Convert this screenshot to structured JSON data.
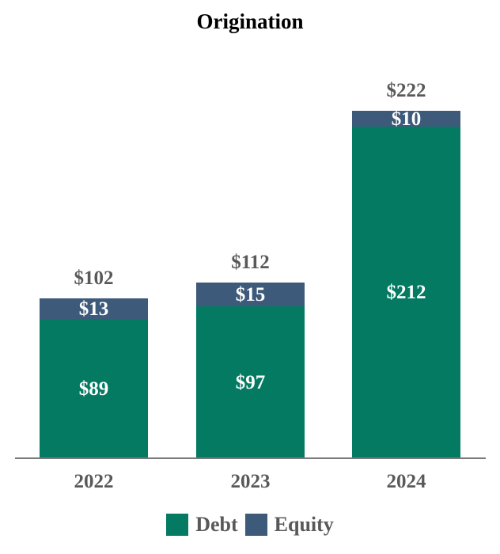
{
  "chart_data": {
    "type": "bar",
    "stacked": true,
    "title": "Origination",
    "categories": [
      "2022",
      "2023",
      "2024"
    ],
    "series": [
      {
        "name": "Debt",
        "color": "#057A62",
        "values": [
          89,
          97,
          212
        ],
        "value_labels": [
          "$89",
          "$97",
          "$212"
        ]
      },
      {
        "name": "Equity",
        "color": "#3D5A7A",
        "values": [
          13,
          15,
          10
        ],
        "value_labels": [
          "$13",
          "$15",
          "$10"
        ]
      }
    ],
    "totals": [
      102,
      112,
      222
    ],
    "total_labels": [
      "$102",
      "$112",
      "$222"
    ],
    "ylim": [
      0,
      222
    ],
    "grid": false,
    "axis_visible": "x-only",
    "legend_position": "bottom",
    "colors": {
      "label_gray": "#595959",
      "axis_line": "#7A7A7A",
      "title": "#000000",
      "segment_label": "#FFFFFF"
    }
  }
}
